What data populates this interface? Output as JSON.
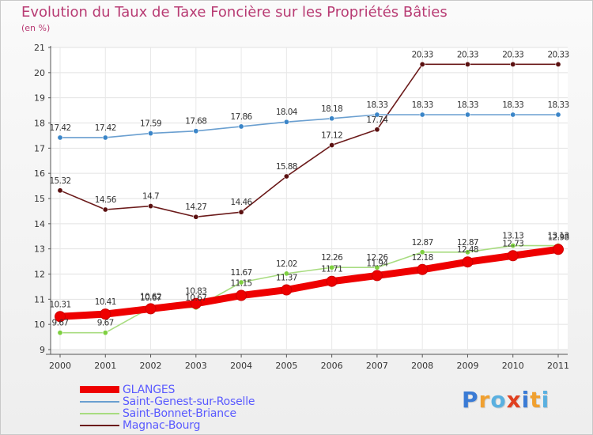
{
  "title": "Evolution du Taux de Taxe Foncière sur les Propriétés Bâties",
  "subtitle": "(en %)",
  "logo": {
    "text": "Proxiti",
    "colors": [
      "#3a7bd5",
      "#f0a030",
      "#5ab0e0",
      "#e04020",
      "#3a7bd5",
      "#f0a030",
      "#5ab0e0"
    ]
  },
  "chart_data": {
    "type": "line",
    "x": [
      "2000",
      "2001",
      "2002",
      "2003",
      "2004",
      "2005",
      "2006",
      "2007",
      "2008",
      "2009",
      "2010",
      "2011"
    ],
    "ylim": [
      9,
      21
    ],
    "yticks": [
      "9",
      "10",
      "11",
      "12",
      "13",
      "14",
      "15",
      "16",
      "17",
      "18",
      "19",
      "20",
      "21"
    ],
    "grid": true,
    "legend_position": "bottom-left",
    "series": [
      {
        "name": "Magnac-Bourg",
        "color": "#6b1a1a",
        "marker": "#5a1010",
        "values": [
          15.32,
          14.56,
          14.7,
          14.27,
          14.46,
          15.88,
          17.12,
          17.74,
          20.33,
          20.33,
          20.33,
          20.33
        ],
        "labels": [
          "15.32",
          "14.56",
          "14.7",
          "14.27",
          "14.46",
          "15.88",
          "17.12",
          "17.74",
          "20.33",
          "20.33",
          "20.33",
          "20.33"
        ]
      },
      {
        "name": "Saint-Genest-sur-Roselle",
        "color": "#6a9fd0",
        "marker": "#3a85c8",
        "values": [
          17.42,
          17.42,
          17.59,
          17.68,
          17.86,
          18.04,
          18.18,
          18.33,
          18.33,
          18.33,
          18.33,
          18.33
        ],
        "labels": [
          "17.42",
          "17.42",
          "17.59",
          "17.68",
          "17.86",
          "18.04",
          "18.18",
          "18.33",
          "18.33",
          "18.33",
          "18.33",
          "18.33"
        ]
      },
      {
        "name": "Saint-Bonnet-Briance",
        "color": "#a8dc80",
        "marker": "#7ed040",
        "values": [
          9.67,
          9.67,
          10.67,
          10.67,
          11.67,
          12.02,
          12.26,
          12.26,
          12.87,
          12.87,
          13.13,
          13.13
        ],
        "labels": [
          "9.67",
          "9.67",
          "10.67",
          "10.67",
          "11.67",
          "12.02",
          "12.26",
          "12.26",
          "12.87",
          "12.87",
          "13.13",
          "13.13"
        ]
      },
      {
        "name": "GLANGES",
        "color": "#ee0000",
        "marker": "#ee0000",
        "values": [
          10.31,
          10.41,
          10.62,
          10.83,
          11.15,
          11.37,
          11.71,
          11.94,
          12.18,
          12.48,
          12.73,
          12.98
        ],
        "labels": [
          "10.31",
          "10.41",
          "10.62",
          "10.83",
          "11.15",
          "11.37",
          "11.71",
          "11.94",
          "12.18",
          "12.48",
          "12.73",
          "12.98"
        ]
      }
    ]
  },
  "legend": [
    {
      "name": "GLANGES",
      "color": "#ee0000"
    },
    {
      "name": "Saint-Genest-sur-Roselle",
      "color": "#6a9fd0"
    },
    {
      "name": "Saint-Bonnet-Briance",
      "color": "#a8dc80"
    },
    {
      "name": "Magnac-Bourg",
      "color": "#6b1a1a"
    }
  ]
}
